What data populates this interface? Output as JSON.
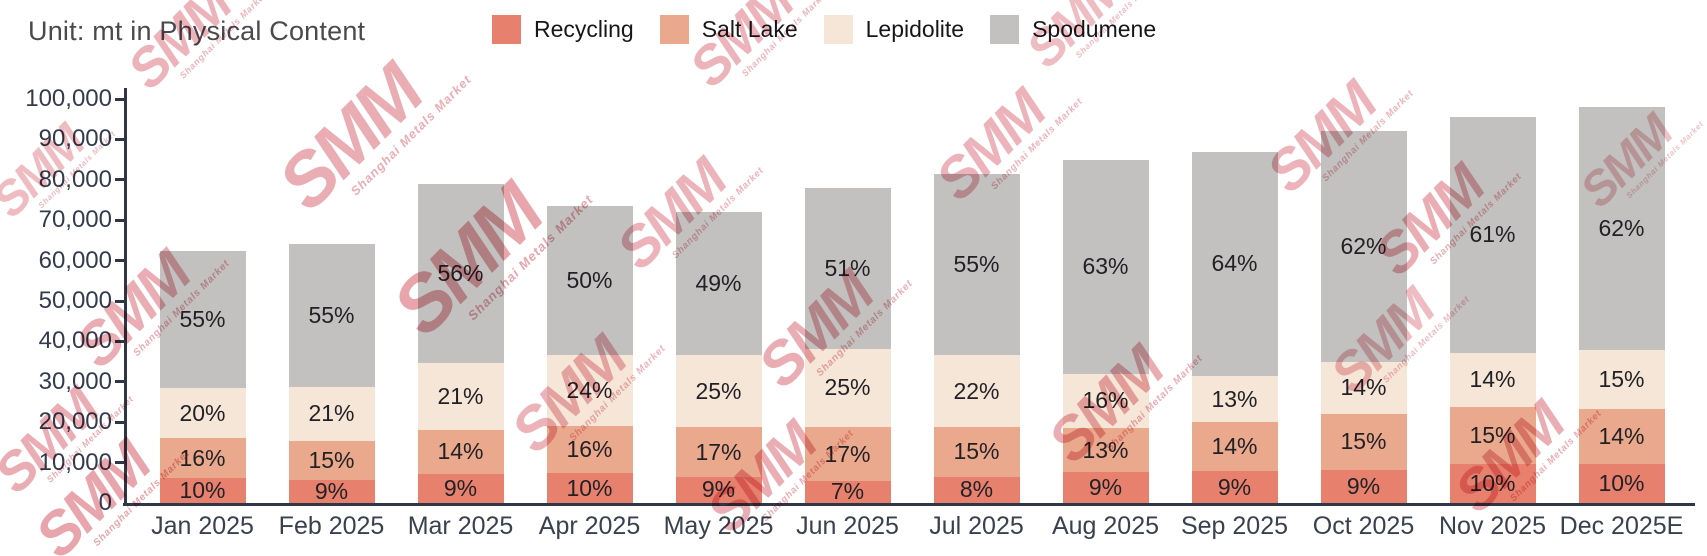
{
  "title": "Unit: mt in Physical Content",
  "watermark": {
    "logo": "SMM",
    "subtext": "Shanghai Metals Market"
  },
  "chart_data": {
    "type": "bar",
    "stacked": true,
    "title": "Unit: mt in Physical Content",
    "unit": "mt in Physical Content",
    "categories": [
      "Jan 2025",
      "Feb 2025",
      "Mar 2025",
      "Apr 2025",
      "May 2025",
      "Jun 2025",
      "Jul 2025",
      "Aug 2025",
      "Sep 2025",
      "Oct 2025",
      "Nov 2025",
      "Dec 2025E"
    ],
    "totals": [
      62500,
      64000,
      79000,
      73500,
      72000,
      78000,
      81500,
      85000,
      87000,
      92000,
      95500,
      98000
    ],
    "series": [
      {
        "name": "Recycling",
        "color": "#E8806E",
        "pct": [
          10,
          9,
          9,
          10,
          9,
          7,
          8,
          9,
          9,
          9,
          10,
          10
        ]
      },
      {
        "name": "Salt Lake",
        "color": "#EAA88D",
        "pct": [
          16,
          15,
          14,
          16,
          17,
          17,
          15,
          13,
          14,
          15,
          15,
          14
        ]
      },
      {
        "name": "Lepidolite",
        "color": "#F6E6D7",
        "pct": [
          20,
          21,
          21,
          24,
          25,
          25,
          22,
          16,
          13,
          14,
          14,
          15
        ]
      },
      {
        "name": "Spodumene",
        "color": "#C2C1C0",
        "pct": [
          55,
          55,
          56,
          50,
          49,
          51,
          55,
          63,
          64,
          62,
          61,
          62
        ]
      }
    ],
    "label_format": "percent",
    "y_axis": {
      "min": 0,
      "max": 100000,
      "step": 10000,
      "tick_labels": [
        "0",
        "10,000",
        "20,000",
        "30,000",
        "40,000",
        "50,000",
        "60,000",
        "70,000",
        "80,000",
        "90,000",
        "100,000"
      ]
    },
    "legend": [
      "Recycling",
      "Salt Lake",
      "Lepidolite",
      "Spodumene"
    ],
    "legend_position": "top-center",
    "grid": false
  },
  "colors": {
    "axis": "#2F3645",
    "tick_text": "#333B4D",
    "title_text": "#4A4A4E",
    "bar_label": "#222226",
    "watermark": "#D96A76"
  }
}
